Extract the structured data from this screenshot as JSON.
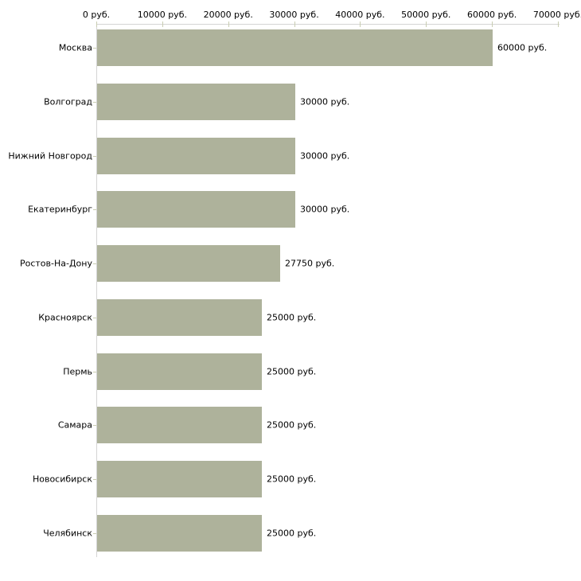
{
  "chart_data": {
    "type": "bar",
    "orientation": "horizontal",
    "title": "",
    "xlabel": "",
    "ylabel": "",
    "grid": false,
    "legend": false,
    "categories": [
      "Москва",
      "Волгоград",
      "Нижний Новгород",
      "Екатеринбург",
      "Ростов-На-Дону",
      "Красноярск",
      "Пермь",
      "Самара",
      "Новосибирск",
      "Челябинск"
    ],
    "values": [
      60000,
      30000,
      30000,
      30000,
      27750,
      25000,
      25000,
      25000,
      25000,
      25000
    ],
    "value_labels": [
      "60000 руб.",
      "30000 руб.",
      "30000 руб.",
      "30000 руб.",
      "27750 руб.",
      "25000 руб.",
      "25000 руб.",
      "25000 руб.",
      "25000 руб.",
      "25000 руб."
    ],
    "x_axis": {
      "position": "top",
      "min": 0,
      "max": 70000,
      "ticks": [
        0,
        10000,
        20000,
        30000,
        40000,
        50000,
        60000,
        70000
      ],
      "tick_labels": [
        "0 руб.",
        "10000 руб.",
        "20000 руб.",
        "30000 руб.",
        "40000 руб.",
        "50000 руб.",
        "60000 руб.",
        "70000 руб."
      ]
    },
    "colors": {
      "bar": "#aeb29b",
      "axis_line": "#d5d5d5",
      "tick_mark": "#c9cdb2",
      "text": "#000000",
      "background": "#ffffff"
    }
  }
}
